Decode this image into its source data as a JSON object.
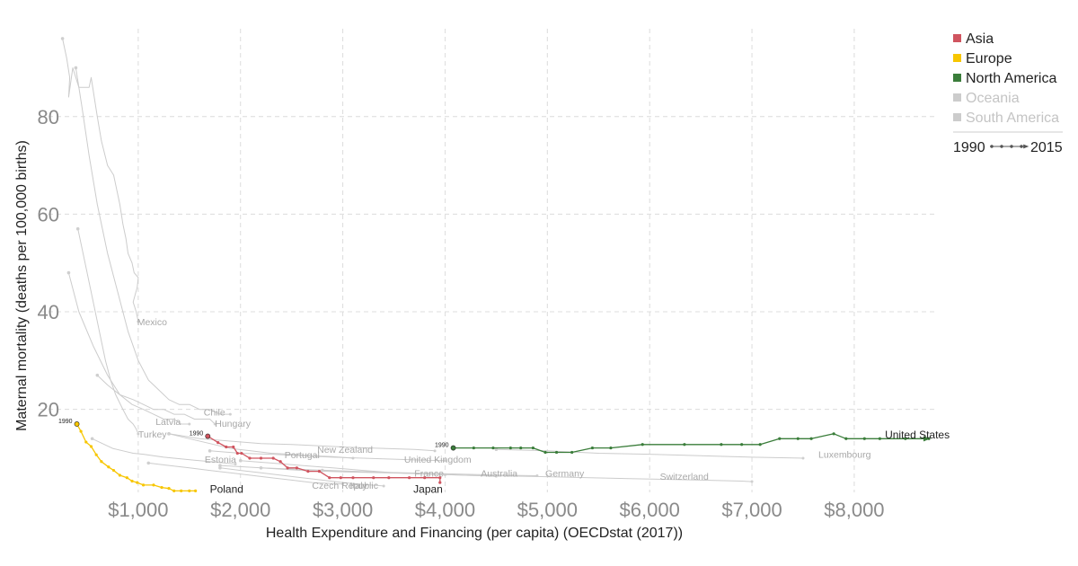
{
  "chart_data": {
    "type": "line",
    "xlabel": "Health Expenditure and Financing (per capita) (OECDstat (2017))",
    "ylabel": "Maternal mortality (deaths per 100,000 births)",
    "x_ticks": [
      1000,
      2000,
      3000,
      4000,
      5000,
      6000,
      7000,
      8000
    ],
    "x_tick_labels": [
      "$1,000",
      "$2,000",
      "$3,000",
      "$4,000",
      "$5,000",
      "$6,000",
      "$7,000",
      "$8,000"
    ],
    "y_ticks": [
      20,
      40,
      60,
      80
    ],
    "y_tick_labels": [
      "20",
      "40",
      "60",
      "80"
    ],
    "xlim": [
      0,
      8800
    ],
    "ylim": [
      3,
      98
    ],
    "grid": true,
    "legend_position": "top-right",
    "legend": {
      "items": [
        {
          "label": "Asia",
          "color": "#d0545f",
          "active": true
        },
        {
          "label": "Europe",
          "color": "#f7c600",
          "active": true
        },
        {
          "label": "North America",
          "color": "#3a7d3a",
          "active": true
        },
        {
          "label": "Oceania",
          "color": "#cccccc",
          "active": false
        },
        {
          "label": "South America",
          "color": "#cccccc",
          "active": false
        }
      ],
      "year_start": "1990",
      "year_end": "2015"
    },
    "series": [
      {
        "name": "United States",
        "color": "#3a7d3a",
        "highlight": true,
        "year_label": "1990",
        "x": [
          4080,
          4280,
          4470,
          4640,
          4740,
          4860,
          4980,
          5090,
          5240,
          5440,
          5620,
          5930,
          6340,
          6700,
          6900,
          7080,
          7270,
          7450,
          7580,
          7800,
          7920,
          8100,
          8250,
          8500,
          8730
        ],
        "y": [
          12.1,
          12.1,
          12.1,
          12.1,
          12.1,
          12.1,
          11.2,
          11.2,
          11.2,
          12.1,
          12.1,
          12.8,
          12.8,
          12.8,
          12.8,
          12.8,
          14.0,
          14.0,
          14.0,
          15.0,
          14.0,
          14.0,
          14.0,
          14.0,
          14.0
        ]
      },
      {
        "name": "Japan",
        "color": "#d0545f",
        "highlight": true,
        "year_label": "1990",
        "x": [
          1680,
          1780,
          1860,
          1930,
          1970,
          2010,
          2090,
          2200,
          2320,
          2390,
          2460,
          2550,
          2660,
          2770,
          2870,
          2980,
          3100,
          3300,
          3450,
          3650,
          3800,
          3950,
          3950
        ],
        "y": [
          14.5,
          13.2,
          12.3,
          12.3,
          11.0,
          11.0,
          10.0,
          10.0,
          10.0,
          9.3,
          8.0,
          8.0,
          7.3,
          7.3,
          6.0,
          6.0,
          6.0,
          6.0,
          6.0,
          6.0,
          6.0,
          6.0,
          5.0
        ]
      },
      {
        "name": "Poland",
        "color": "#f7c600",
        "highlight": true,
        "year_label": "1990",
        "x": [
          400,
          440,
          490,
          540,
          590,
          640,
          710,
          760,
          820,
          890,
          940,
          990,
          1050,
          1150,
          1230,
          1300,
          1350,
          1420,
          1500,
          1560
        ],
        "y": [
          17.0,
          15.5,
          13.3,
          12.4,
          10.7,
          9.3,
          8.2,
          7.5,
          6.5,
          6.0,
          5.3,
          5.0,
          4.5,
          4.5,
          4.0,
          3.8,
          3.3,
          3.3,
          3.3,
          3.3
        ]
      },
      {
        "name": "Mexico",
        "color": "#cccccc",
        "highlight": false,
        "x": [
          260,
          300,
          330,
          320,
          360,
          420,
          520,
          540,
          600,
          640,
          700,
          760,
          820,
          850,
          880,
          900,
          940,
          960,
          1000,
          990,
          950,
          980,
          1000
        ],
        "y": [
          96,
          92,
          88,
          84,
          90,
          86,
          86,
          88,
          80,
          75,
          70,
          68,
          62,
          58,
          55,
          52,
          50,
          48,
          47,
          45,
          42,
          40,
          38
        ]
      },
      {
        "name": "Chile",
        "color": "#cccccc",
        "highlight": false,
        "x": [
          390,
          450,
          520,
          600,
          700,
          800,
          900,
          1000,
          1100,
          1200,
          1300,
          1400,
          1500,
          1600,
          1700,
          1800,
          1900
        ],
        "y": [
          90,
          82,
          72,
          62,
          52,
          44,
          36,
          30,
          26,
          24,
          22,
          21,
          21,
          20,
          20,
          19,
          19
        ]
      },
      {
        "name": "Turkey",
        "color": "#cccccc",
        "highlight": false,
        "x": [
          410,
          480,
          560,
          620,
          680,
          730,
          780,
          850,
          900,
          950,
          980,
          1000
        ],
        "y": [
          57,
          50,
          42,
          36,
          30,
          26,
          23,
          20,
          18,
          17,
          16,
          15
        ]
      },
      {
        "name": "Latvia",
        "color": "#cccccc",
        "highlight": false,
        "x": [
          320,
          420,
          560,
          700,
          820,
          940,
          1050,
          1150,
          1250,
          1350,
          1420,
          1500
        ],
        "y": [
          48,
          40,
          33,
          27,
          23,
          21,
          20,
          19,
          18,
          18,
          17,
          17
        ]
      },
      {
        "name": "Hungary",
        "color": "#cccccc",
        "highlight": false,
        "x": [
          600,
          700,
          820,
          950,
          1050,
          1150,
          1250,
          1350,
          1450,
          1550,
          1620,
          1700,
          1750
        ],
        "y": [
          27,
          25,
          23,
          22,
          21,
          20,
          20,
          19,
          19,
          18,
          18,
          18,
          17
        ]
      },
      {
        "name": "Estonia",
        "color": "#cccccc",
        "highlight": false,
        "x": [
          550,
          650,
          750,
          850,
          950,
          1050,
          1150,
          1250,
          1350,
          1450,
          1550,
          1650,
          1750,
          1850,
          1950
        ],
        "y": [
          14.0,
          13.0,
          12.0,
          11.5,
          11.0,
          10.8,
          10.5,
          10.2,
          10.0,
          9.8,
          9.6,
          9.4,
          9.2,
          9.0,
          8.8
        ]
      },
      {
        "name": "Czech Republic",
        "color": "#cccccc",
        "highlight": false,
        "x": [
          1100,
          1300,
          1500,
          1700,
          1900,
          2100,
          2300,
          2500,
          2700,
          2900,
          3000
        ],
        "y": [
          9.0,
          8.5,
          8.0,
          7.5,
          7.0,
          6.5,
          6.0,
          5.5,
          5.0,
          4.8,
          4.7
        ]
      },
      {
        "name": "Portugal",
        "color": "#cccccc",
        "highlight": false,
        "x": [
          1300,
          1500,
          1700,
          1900,
          2100,
          2300,
          2500,
          2700,
          2900,
          3100
        ],
        "y": [
          15.0,
          14.0,
          13.0,
          12.0,
          11.5,
          11.0,
          10.8,
          10.5,
          10.3,
          10.0
        ]
      },
      {
        "name": "Italy",
        "color": "#cccccc",
        "highlight": false,
        "x": [
          1800,
          2000,
          2200,
          2400,
          2600,
          2800,
          3000,
          3200,
          3400
        ],
        "y": [
          8.0,
          7.5,
          7.0,
          6.5,
          6.0,
          5.5,
          5.0,
          4.6,
          4.3
        ]
      },
      {
        "name": "New Zealand",
        "color": "#cccccc",
        "highlight": false,
        "x": [
          1300,
          1600,
          1900,
          2200,
          2500,
          2800,
          3100,
          3400,
          3700,
          3900
        ],
        "y": [
          15.0,
          14.0,
          13.5,
          13.0,
          12.8,
          12.5,
          12.2,
          12.0,
          11.8,
          11.5
        ]
      },
      {
        "name": "United Kingdom",
        "color": "#cccccc",
        "highlight": false,
        "x": [
          1700,
          2000,
          2300,
          2600,
          2900,
          3200,
          3500,
          3800,
          4000
        ],
        "y": [
          11.5,
          11.0,
          10.8,
          10.5,
          10.2,
          10.0,
          9.8,
          9.6,
          9.5
        ]
      },
      {
        "name": "France",
        "color": "#cccccc",
        "highlight": false,
        "x": [
          2000,
          2300,
          2600,
          2900,
          3200,
          3500,
          3800,
          4000
        ],
        "y": [
          9.5,
          9.0,
          8.5,
          8.0,
          7.5,
          7.0,
          6.8,
          6.6
        ]
      },
      {
        "name": "Australia",
        "color": "#cccccc",
        "highlight": false,
        "x": [
          1800,
          2200,
          2600,
          3000,
          3400,
          3800,
          4200,
          4500
        ],
        "y": [
          8.5,
          8.0,
          7.5,
          7.2,
          7.0,
          6.8,
          6.5,
          6.3
        ]
      },
      {
        "name": "Germany",
        "color": "#cccccc",
        "highlight": false,
        "x": [
          2200,
          2600,
          3000,
          3400,
          3800,
          4200,
          4600,
          4900
        ],
        "y": [
          8.0,
          7.7,
          7.4,
          7.1,
          6.9,
          6.7,
          6.5,
          6.4
        ]
      },
      {
        "name": "Switzerland",
        "color": "#cccccc",
        "highlight": false,
        "x": [
          2800,
          3500,
          4200,
          5000,
          5800,
          6500,
          6900,
          7000
        ],
        "y": [
          7.5,
          7.0,
          6.5,
          6.2,
          5.8,
          5.5,
          5.3,
          5.2
        ]
      },
      {
        "name": "Luxembourg",
        "color": "#cccccc",
        "highlight": false,
        "x": [
          4500,
          5000,
          5500,
          6000,
          6500,
          7000,
          7500
        ],
        "y": [
          11.8,
          11.5,
          11.0,
          10.8,
          10.5,
          10.2,
          10.0
        ]
      }
    ],
    "labels": [
      {
        "text": "Mexico",
        "x": 990,
        "y": 38,
        "highlight": false
      },
      {
        "text": "Chile",
        "x": 1640,
        "y": 19.5,
        "highlight": false
      },
      {
        "text": "Latvia",
        "x": 1170,
        "y": 17.5,
        "highlight": false
      },
      {
        "text": "Hungary",
        "x": 1750,
        "y": 17.2,
        "highlight": false
      },
      {
        "text": "Turkey",
        "x": 1000,
        "y": 15.0,
        "highlight": false
      },
      {
        "text": "Portugal",
        "x": 2430,
        "y": 10.7,
        "highlight": false
      },
      {
        "text": "Estonia",
        "x": 1650,
        "y": 9.8,
        "highlight": false
      },
      {
        "text": "New Zealand",
        "x": 2750,
        "y": 11.8,
        "highlight": false
      },
      {
        "text": "United Kingdom",
        "x": 3600,
        "y": 9.8,
        "highlight": false
      },
      {
        "text": "Luxembourg",
        "x": 7650,
        "y": 10.8,
        "highlight": false
      },
      {
        "text": "France",
        "x": 3700,
        "y": 7.0,
        "highlight": false
      },
      {
        "text": "Australia",
        "x": 4350,
        "y": 7.0,
        "highlight": false
      },
      {
        "text": "Germany",
        "x": 4980,
        "y": 7.0,
        "highlight": false
      },
      {
        "text": "Switzerland",
        "x": 6100,
        "y": 6.3,
        "highlight": false
      },
      {
        "text": "Czech Republic",
        "x": 2700,
        "y": 4.5,
        "highlight": false
      },
      {
        "text": "Italy",
        "x": 3070,
        "y": 4.5,
        "highlight": false
      },
      {
        "text": "United States",
        "x": 8300,
        "y": 14.8,
        "highlight": true
      },
      {
        "text": "Poland",
        "x": 1700,
        "y": 3.6,
        "highlight": true
      },
      {
        "text": "Japan",
        "x": 3690,
        "y": 3.6,
        "highlight": true
      }
    ]
  }
}
